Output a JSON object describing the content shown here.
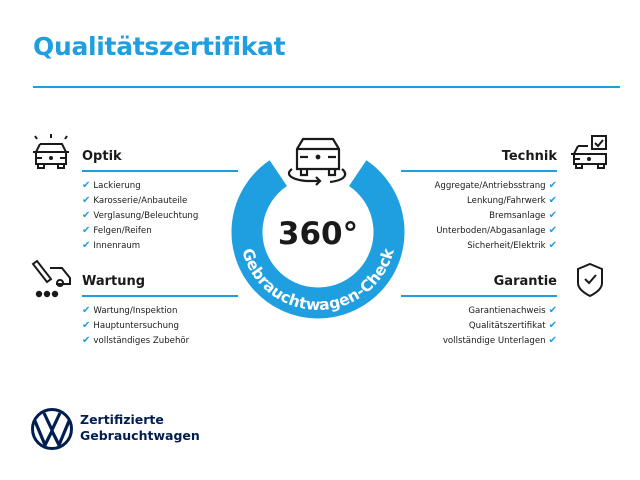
{
  "title": "Qualitätszertifikat",
  "center": {
    "value": "360°",
    "ring_text": "Gebrauchtwagen-Check"
  },
  "sections": {
    "optik": {
      "heading": "Optik",
      "icon": "car-lights-icon",
      "items": [
        "Lackierung",
        "Karosserie/Anbauteile",
        "Verglasung/Beleuchtung",
        "Felgen/Reifen",
        "Innenraum"
      ]
    },
    "wartung": {
      "heading": "Wartung",
      "icon": "service-tools-icon",
      "items": [
        "Wartung/Inspektion",
        "Hauptuntersuchung",
        "vollständiges Zubehör"
      ]
    },
    "technik": {
      "heading": "Technik",
      "icon": "car-checkbox-icon",
      "items": [
        "Aggregate/Antriebsstrang",
        "Lenkung/Fahrwerk",
        "Bremsanlage",
        "Unterboden/Abgasanlage",
        "Sicherheit/Elektrik"
      ]
    },
    "garantie": {
      "heading": "Garantie",
      "icon": "shield-check-icon",
      "items": [
        "Garantienachweis",
        "Qualitätszertifikat",
        "vollständige Unterlagen"
      ]
    }
  },
  "check_mark": "✔",
  "brand": {
    "line1": "Zertifizierte",
    "line2": "Gebrauchtwagen"
  },
  "colors": {
    "accent": "#1f9fe0",
    "brand_navy": "#001e50",
    "text": "#1a1a1a"
  }
}
